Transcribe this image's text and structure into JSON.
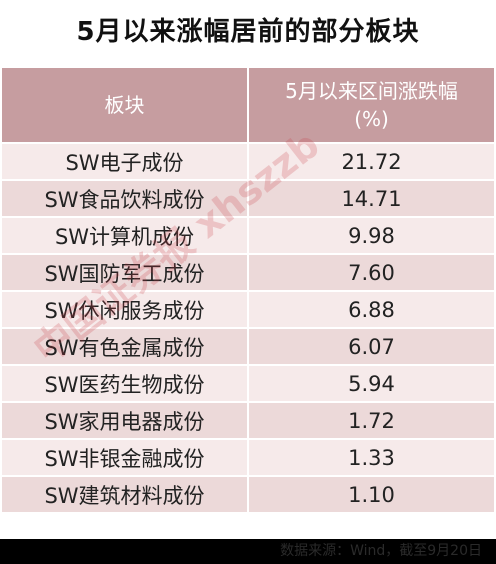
{
  "title": "5月以来涨幅居前的部分板块",
  "table": {
    "header": [
      "板块",
      "5月以来区间涨跌幅",
      "(%)"
    ],
    "rows": [
      [
        "SW电子成份",
        "21.72"
      ],
      [
        "SW食品饮料成份",
        "14.71"
      ],
      [
        "SW计算机成份",
        "9.98"
      ],
      [
        "SW国防军工成份",
        "7.60"
      ],
      [
        "SW休闲服务成份",
        "6.88"
      ],
      [
        "SW有色金属成份",
        "6.07"
      ],
      [
        "SW医药生物成份",
        "5.94"
      ],
      [
        "SW家用电器成份",
        "1.72"
      ],
      [
        "SW非银金融成份",
        "1.33"
      ],
      [
        "SW建筑材料成份",
        "1.10"
      ]
    ]
  },
  "watermark": "中国证券报 xhszzb",
  "footer": "数据来源：Wind，截至9月20日"
}
